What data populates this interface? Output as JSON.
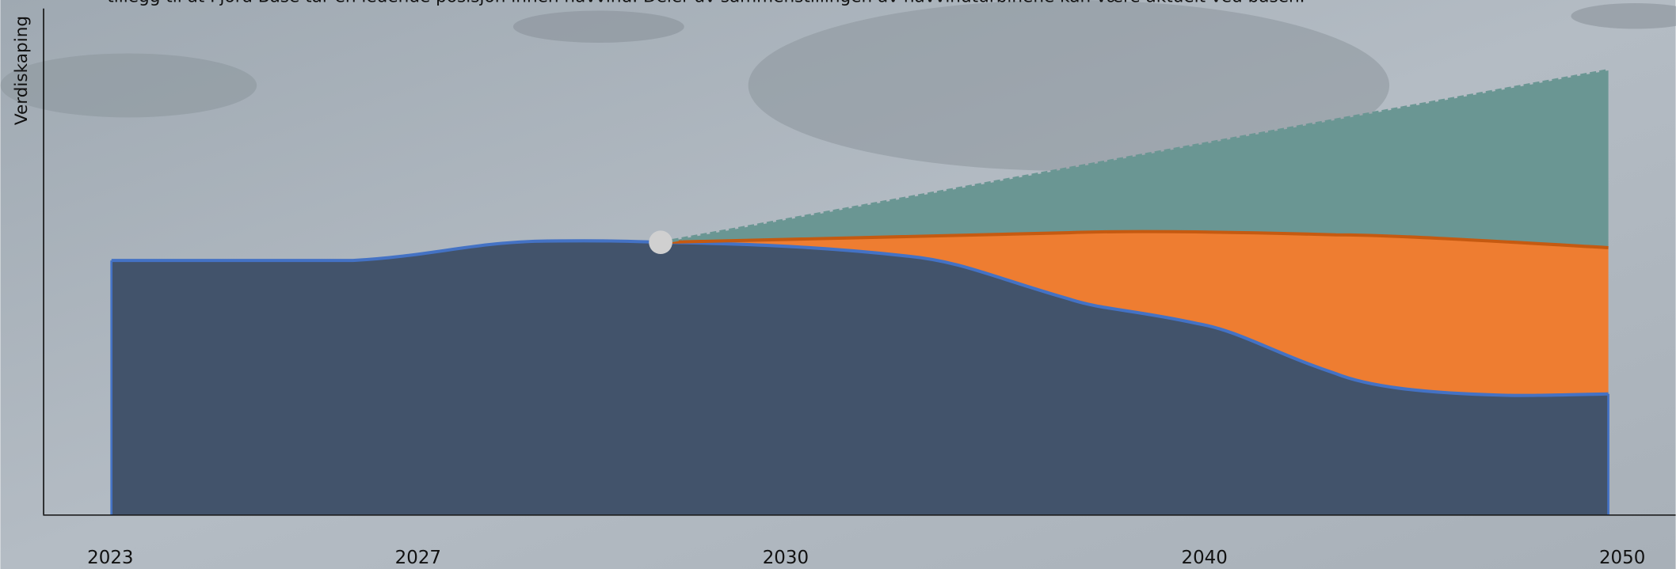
{
  "intro_text": "tillegg til at Fjord Base tar en ledende posisjon innen havvind. Deler av sammenstillingen av havvindturbinene kan være aktuelt ved basen.",
  "chart": {
    "y_axis_label": "Verdiskaping",
    "x_labels": [
      "2023",
      "2027",
      "2030",
      "2040",
      "2050"
    ]
  }
}
